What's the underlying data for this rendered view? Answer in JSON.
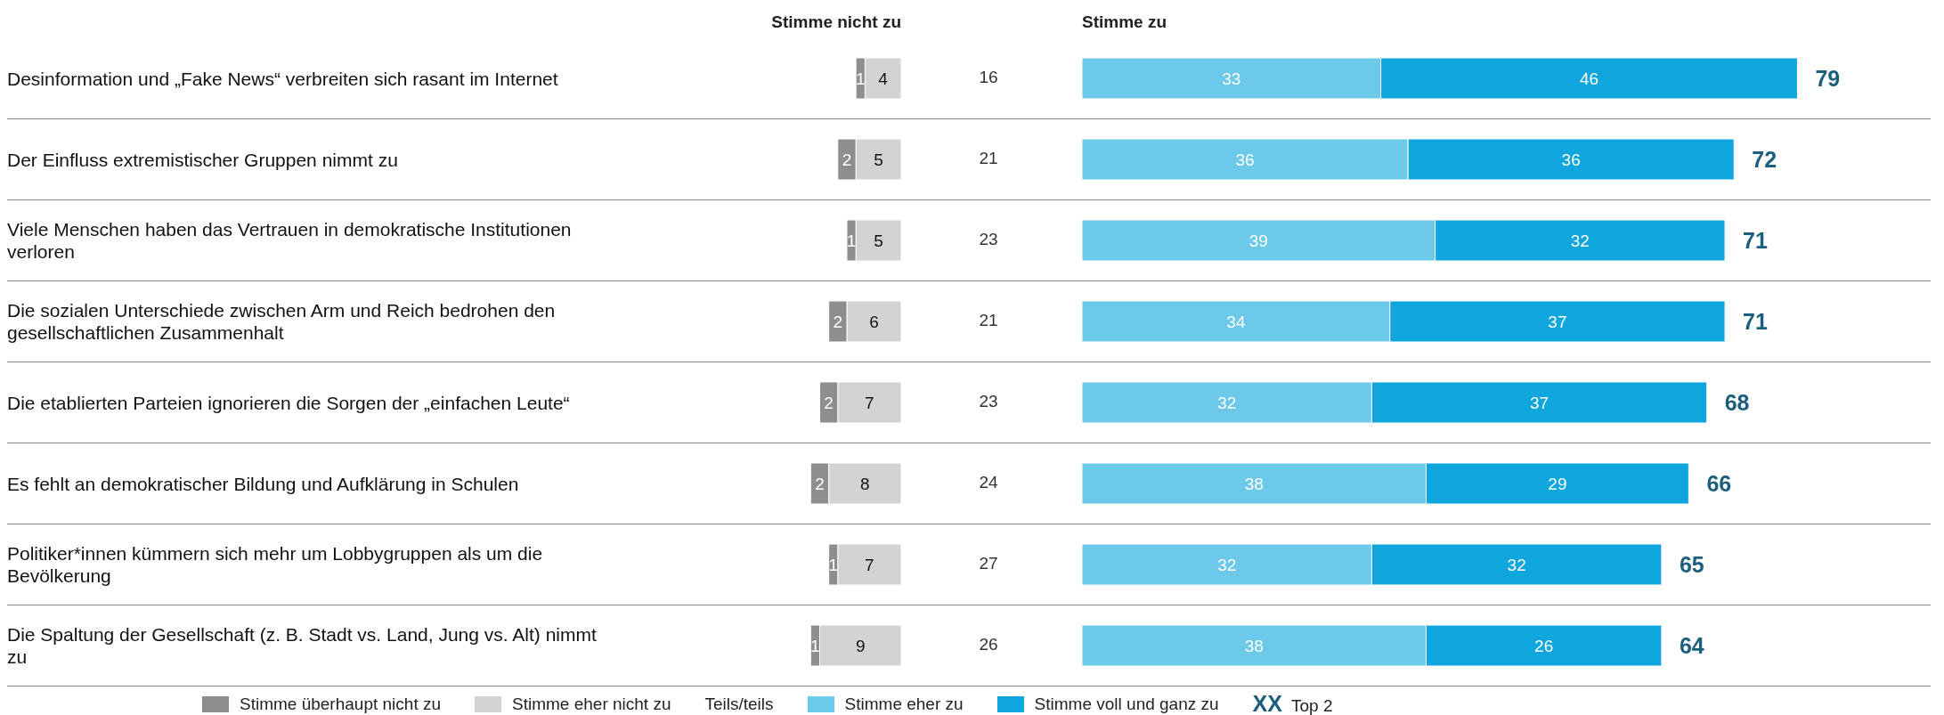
{
  "chart_data": [
    {
      "type": "bar",
      "orientation": "horizontal",
      "stacked": true,
      "data_labels": true,
      "legend": "bottom",
      "grid": "y",
      "categories": [
        "Desinformation und „Fake News“ verbreiten sich rasant im Internet",
        "Der Einfluss extremistischer Gruppen nimmt zu",
        "Viele Menschen haben das Vertrauen in demokratische Institutionen verloren",
        "Die sozialen Unterschiede zwischen Arm und Reich bedrohen den gesellschaftlichen Zusammenhalt",
        "Die etablierten Parteien ignorieren die Sorgen der „einfachen Leute“",
        "Es fehlt an demokratischer Bildung und Aufklärung in Schulen",
        "Politiker*innen kümmern sich mehr um Lobbygruppen als um die Bevölkerung",
        "Die Spaltung der Gesellschaft (z. B. Stadt vs. Land, Jung vs. Alt) nimmt zu"
      ],
      "series": [
        {
          "name": "Stimme eher nicht zu",
          "color": "#d3d3d3",
          "values": [
            4,
            5,
            5,
            6,
            7,
            8,
            7,
            9
          ]
        },
        {
          "name": "Stimme überhaupt nicht zu",
          "color": "#8e8e8e",
          "values": [
            1,
            2,
            1,
            2,
            2,
            2,
            1,
            1
          ]
        }
      ],
      "annotations": [
        "Stimme nicht zu"
      ]
    },
    {
      "type": "other",
      "data_labels": true,
      "series": [
        {
          "name": "Teils/teils",
          "values": [
            16,
            21,
            23,
            21,
            23,
            24,
            27,
            26
          ]
        }
      ]
    },
    {
      "type": "bar",
      "orientation": "horizontal",
      "stacked": true,
      "data_labels": true,
      "legend": "bottom",
      "grid": "y",
      "categories": [
        null,
        null,
        null,
        null,
        null,
        null,
        null,
        null
      ],
      "series": [
        {
          "name": "Stimme eher zu",
          "color": "#6cc9ea",
          "values": [
            33,
            36,
            39,
            34,
            32,
            38,
            32,
            38
          ]
        },
        {
          "name": "Stimme voll und ganz zu",
          "color": "#0ea6dd",
          "values": [
            46,
            36,
            32,
            37,
            37,
            29,
            32,
            26
          ]
        }
      ],
      "totals": [
        "79",
        "72",
        "71",
        "71",
        "68",
        "66",
        "65",
        "64"
      ],
      "annotations": [
        "Stimme zu",
        "XX Top 2"
      ]
    }
  ]
}
